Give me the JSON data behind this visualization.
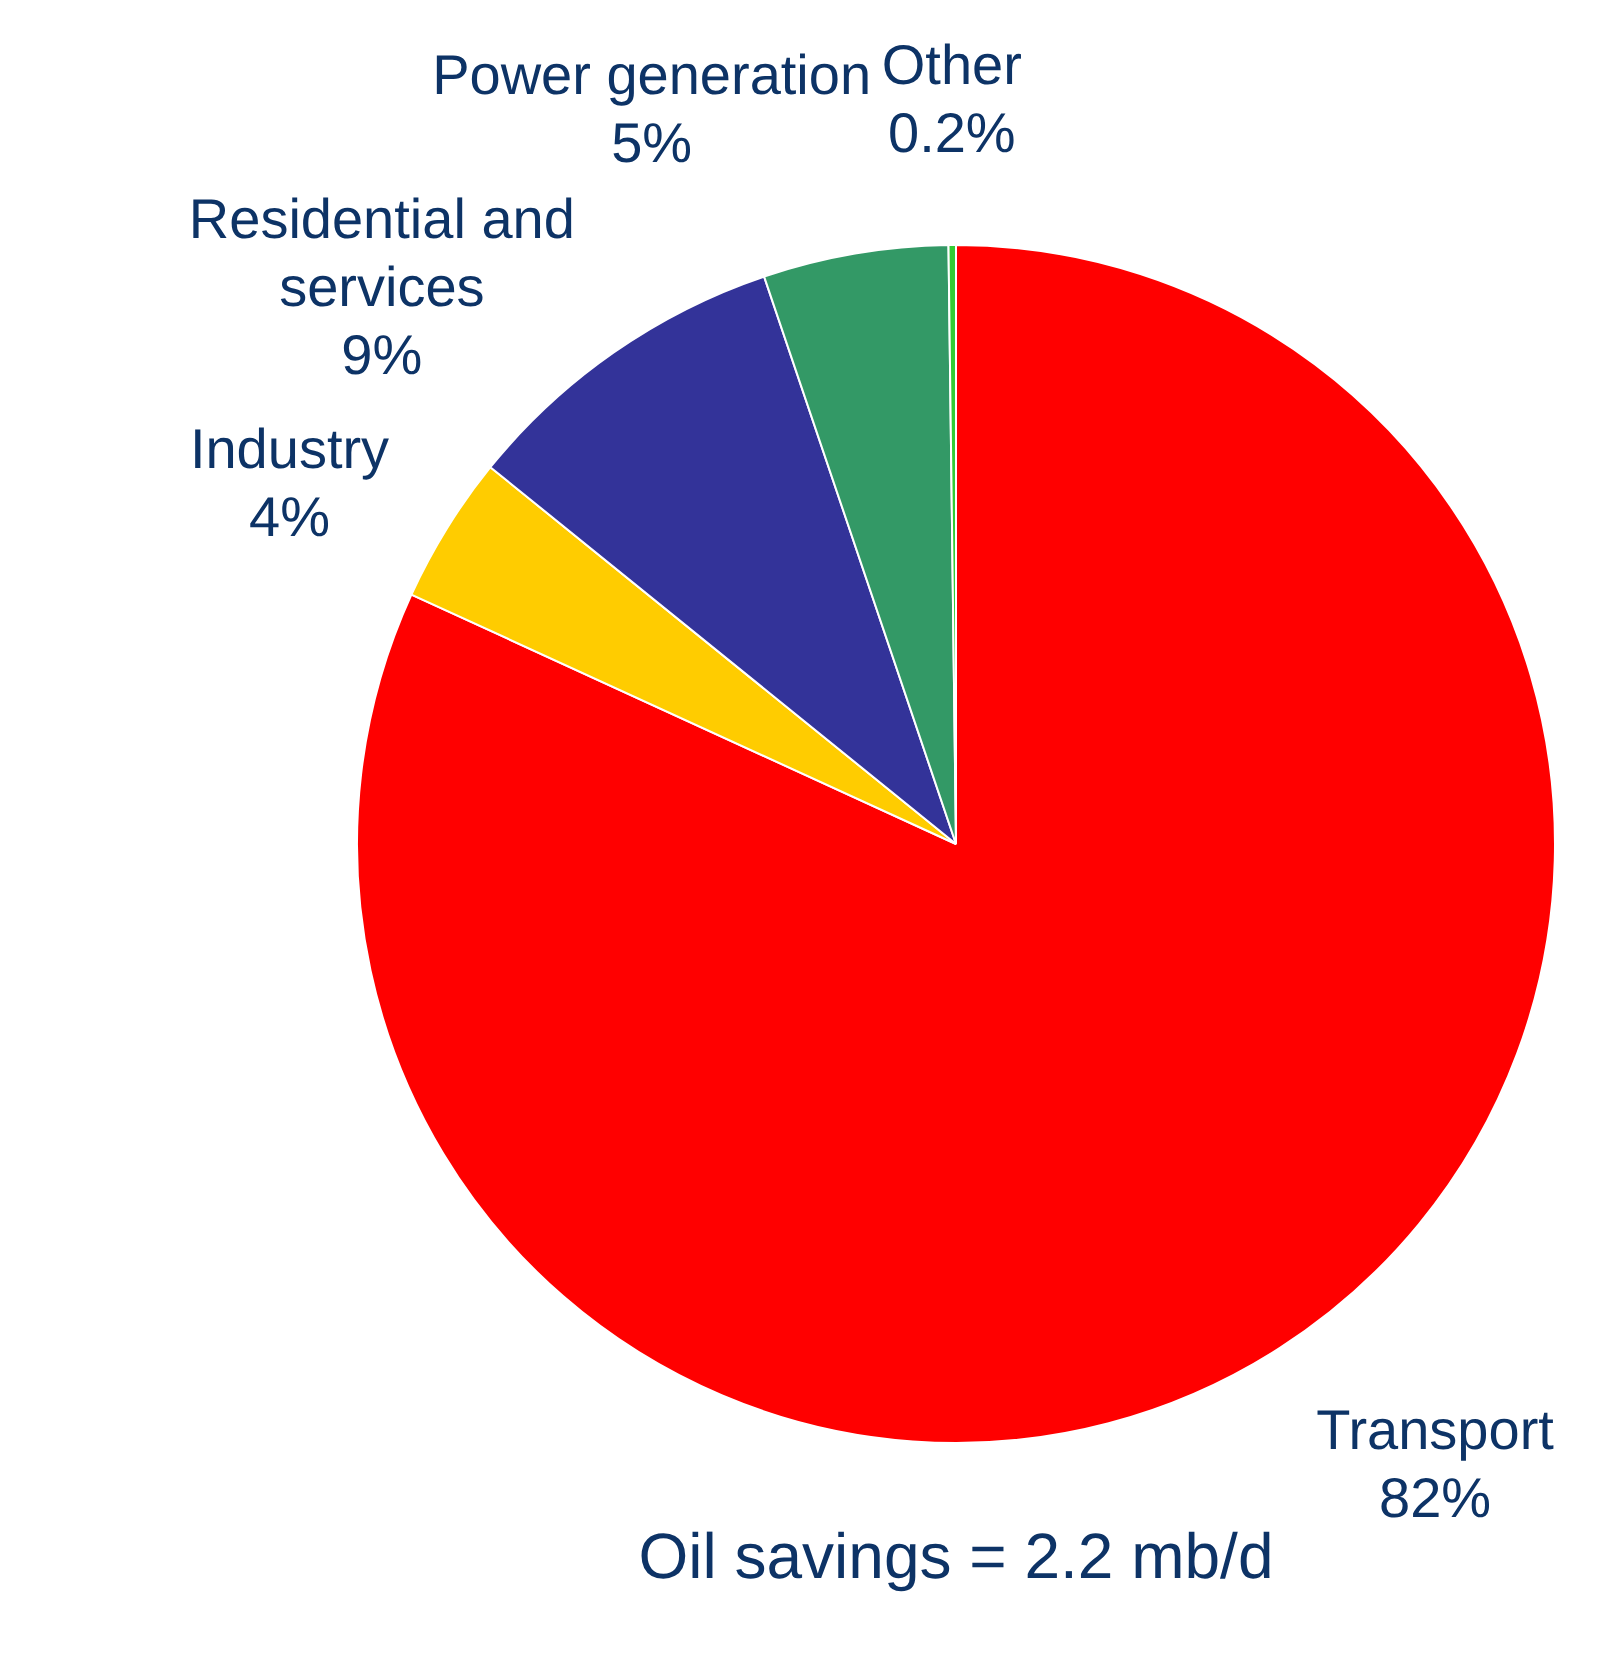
{
  "chart_data": {
    "type": "pie",
    "categories": [
      "Transport",
      "Industry",
      "Residential and services",
      "Power generation",
      "Other"
    ],
    "values": [
      82,
      4,
      9,
      5,
      0.2
    ],
    "value_labels": [
      "82%",
      "4%",
      "9%",
      "5%",
      "0.2%"
    ],
    "colors": [
      "#ff0000",
      "#ffcc00",
      "#333399",
      "#339966",
      "#33cc33"
    ],
    "annotations": [
      "Oil savings = 2.2 mb/d"
    ],
    "legend": false
  }
}
